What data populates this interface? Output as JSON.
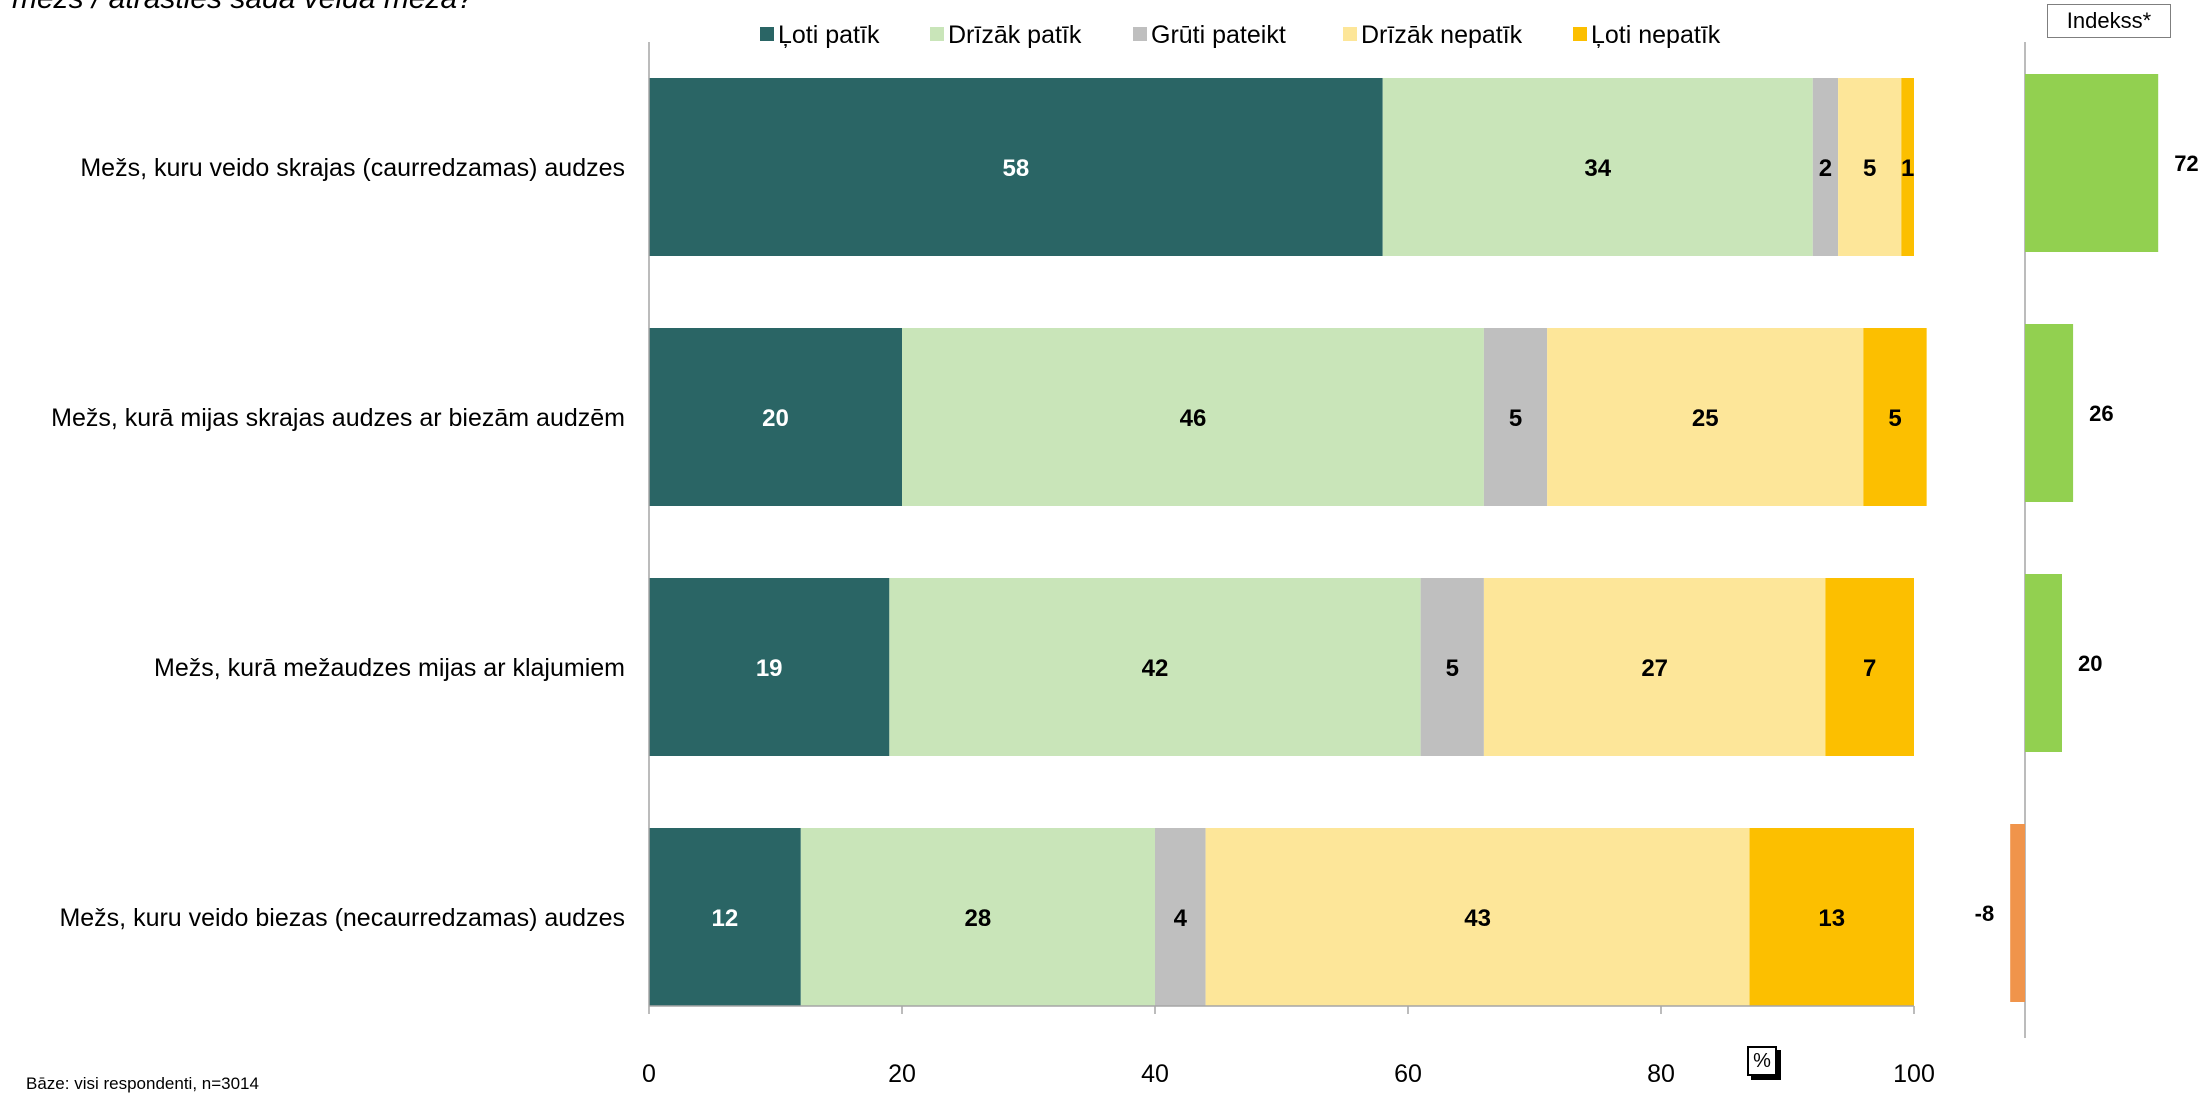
{
  "question": "mežs / atrasties šāda veida mežā?",
  "footnote": "Bāze: visi respondenti, n=3014",
  "index_header": "Indekss*",
  "axis_unit": "%",
  "colors": {
    "loti_patik": "#2a6565",
    "drizak_patik": "#c9e5b9",
    "gruti_pateikt": "#bfbfbf",
    "drizak_nepatik": "#fde699",
    "loti_nepatik": "#fcbf00",
    "index_positive": "#92d050",
    "index_negative": "#f0944b",
    "axis": "#a6a6a6"
  },
  "chart_data": [
    {
      "type": "bar",
      "orientation": "horizontal",
      "stacked": true,
      "categories": [
        "Mežs, kuru veido skrajas (caurredzamas) audzes",
        "Mežs, kurā mijas skrajas audzes ar biezām audzēm",
        "Mežs, kurā mežaudzes mijas ar klajumiem",
        "Mežs, kuru veido biezas (necaurredzamas) audzes"
      ],
      "series": [
        {
          "name": "Ļoti patīk",
          "values": [
            58,
            20,
            19,
            12
          ],
          "color": "#2a6565",
          "label_color": "#ffffff"
        },
        {
          "name": "Drīzāk patīk",
          "values": [
            34,
            46,
            42,
            28
          ],
          "color": "#c9e5b9",
          "label_color": "#000000"
        },
        {
          "name": "Grūti pateikt",
          "values": [
            2,
            5,
            5,
            4
          ],
          "color": "#bfbfbf",
          "label_color": "#000000"
        },
        {
          "name": "Drīzāk nepatīk",
          "values": [
            5,
            25,
            27,
            43
          ],
          "color": "#fde699",
          "label_color": "#000000"
        },
        {
          "name": "Ļoti nepatīk",
          "values": [
            1,
            5,
            7,
            13
          ],
          "color": "#fcbf00",
          "label_color": "#000000"
        }
      ],
      "xlim": [
        0,
        100
      ],
      "xticks": [
        0,
        20,
        40,
        60,
        80,
        100
      ],
      "legend": "top",
      "grid": false
    },
    {
      "type": "bar",
      "orientation": "horizontal",
      "title": "Indekss*",
      "categories": [
        "Mežs, kuru veido skrajas (caurredzamas) audzes",
        "Mežs, kurā mijas skrajas audzes ar biezām audzēm",
        "Mežs, kurā mežaudzes mijas ar klajumiem",
        "Mežs, kuru veido biezas (necaurredzamas) audzes"
      ],
      "values": [
        72,
        26,
        20,
        -8
      ]
    }
  ]
}
